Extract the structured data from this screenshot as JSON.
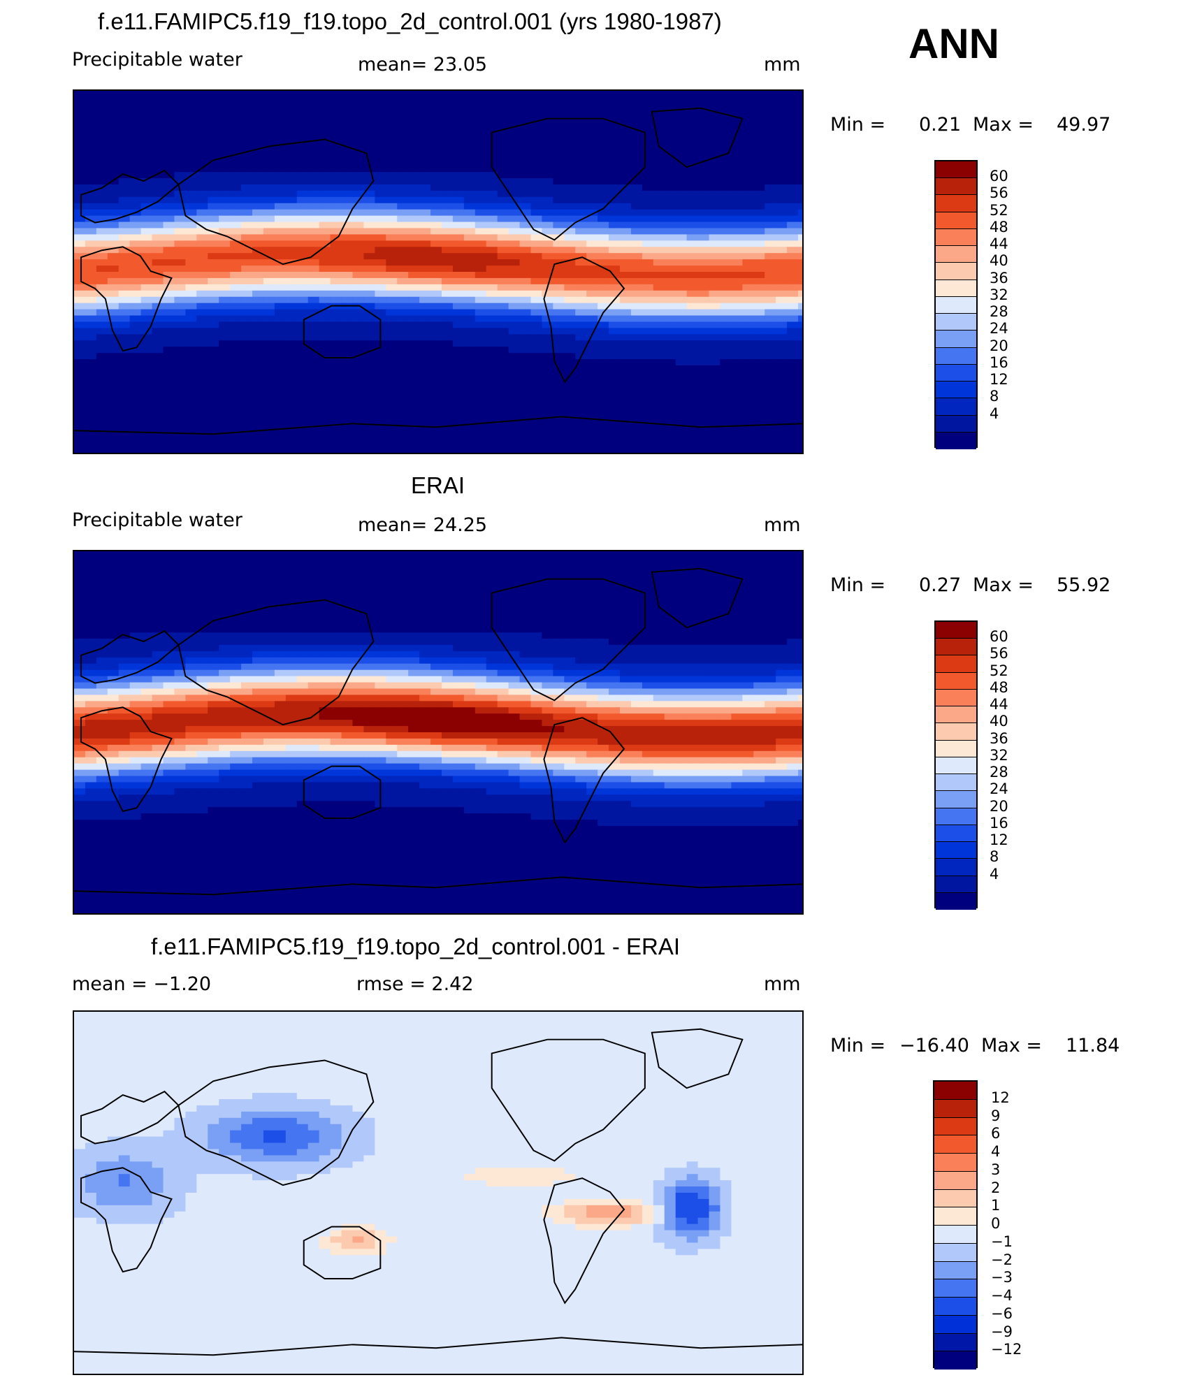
{
  "header": {
    "season": "ANN"
  },
  "colors": {
    "abs_scale": [
      "#00007f",
      "#0015a0",
      "#0026c0",
      "#0036d9",
      "#1c4fe8",
      "#4575f0",
      "#7aa0f5",
      "#b0c8fa",
      "#dfe9fc",
      "#fde8d6",
      "#fccaaf",
      "#fba888",
      "#f98058",
      "#f25a2e",
      "#dc3a14",
      "#b8220a",
      "#8b0000"
    ],
    "diff_scale": [
      "#00007f",
      "#0017a8",
      "#0030d8",
      "#1c4fe8",
      "#4575f0",
      "#7aa0f5",
      "#b0c8fa",
      "#dfe9fc",
      "#fde8d6",
      "#fccaaf",
      "#fba888",
      "#f98058",
      "#f25a2e",
      "#dc3a14",
      "#b8220a",
      "#8b0000"
    ]
  },
  "panels": [
    {
      "title": "f.e11.FAMIPC5.f19_f19.topo_2d_control.001 (yrs 1980-1987)",
      "left_label": "Precipitable  water",
      "center_label": "mean=   23.05",
      "units": "mm",
      "min_label": "Min  =",
      "min_value": "0.21",
      "max_label": "Max  =",
      "max_value": "49.97",
      "colorbar_ticks": [
        "60",
        "56",
        "52",
        "48",
        "44",
        "40",
        "36",
        "32",
        "28",
        "24",
        "20",
        "16",
        "12",
        "8",
        "4"
      ],
      "field_strength": 0.95
    },
    {
      "title": "ERAI",
      "left_label": "Precipitable  water",
      "center_label": "mean=   24.25",
      "units": "mm",
      "min_label": "Min  =",
      "min_value": "0.27",
      "max_label": "Max  =",
      "max_value": "55.92",
      "colorbar_ticks": [
        "60",
        "56",
        "52",
        "48",
        "44",
        "40",
        "36",
        "32",
        "28",
        "24",
        "20",
        "16",
        "12",
        "8",
        "4"
      ],
      "field_strength": 1.05
    },
    {
      "title": "f.e11.FAMIPC5.f19_f19.topo_2d_control.001 - ERAI",
      "left_label": "mean  =   −1.20",
      "center_label": "rmse  =     2.42",
      "units": "mm",
      "min_label": "Min  =",
      "min_value": "−16.40",
      "max_label": "Max  =",
      "max_value": "11.84",
      "colorbar_ticks": [
        "12",
        "9",
        "6",
        "4",
        "3",
        "2",
        "1",
        "0",
        "−1",
        "−2",
        "−3",
        "−4",
        "−6",
        "−9",
        "−12"
      ]
    }
  ]
}
